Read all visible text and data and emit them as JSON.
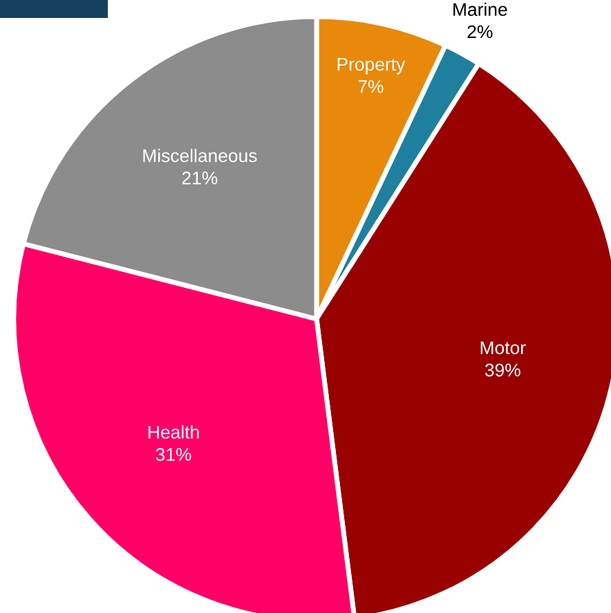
{
  "chart_data": {
    "type": "pie",
    "categories": [
      "Property",
      "Marine",
      "Motor",
      "Health",
      "Miscellaneous"
    ],
    "values": [
      7,
      2,
      39,
      31,
      21
    ],
    "colors": [
      "#e8890c",
      "#1f7f9f",
      "#990000",
      "#ff0066",
      "#8c8c8c"
    ],
    "value_labels": [
      "7%",
      "2%",
      "39%",
      "31%",
      "21%"
    ],
    "legend": false
  }
}
